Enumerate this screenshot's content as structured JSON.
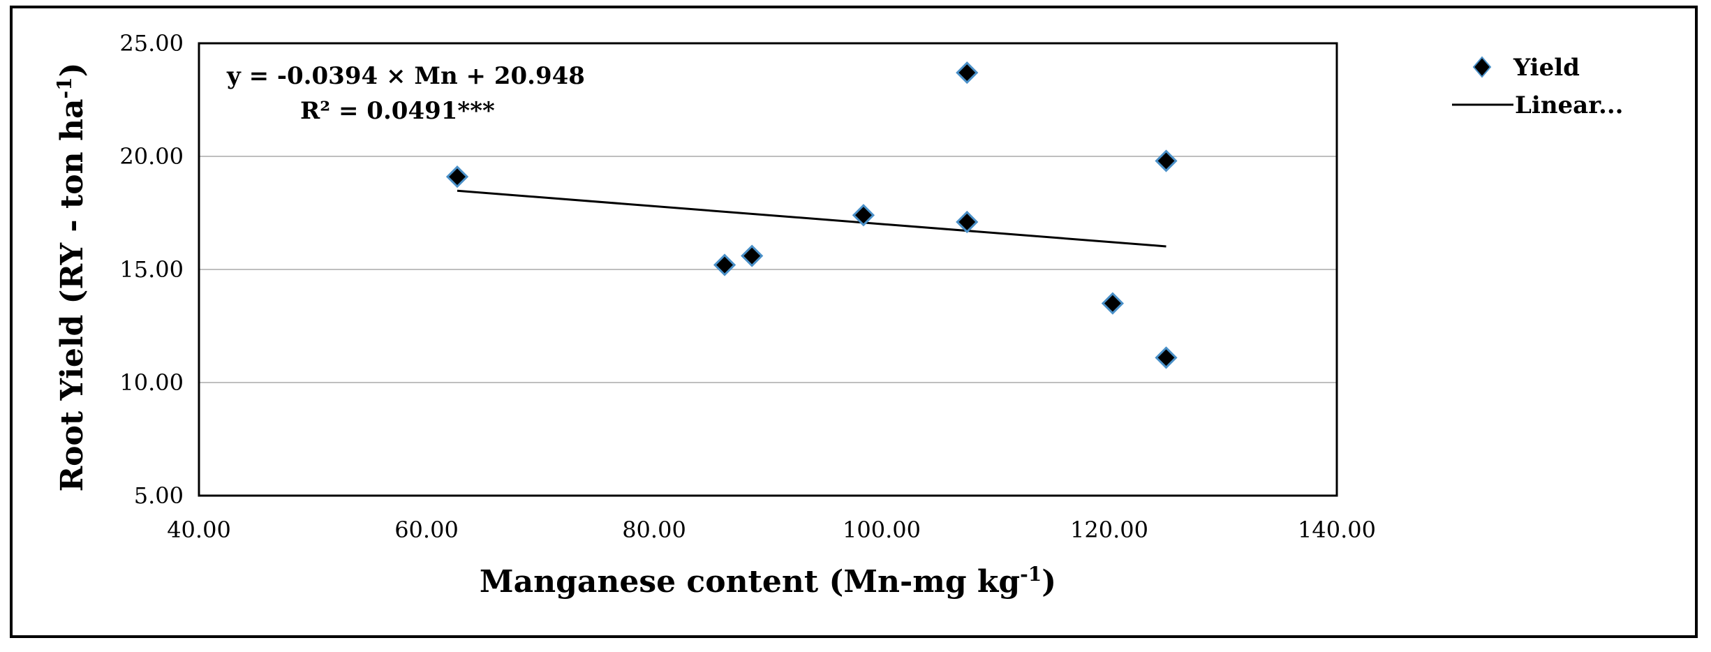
{
  "chart_data": {
    "type": "scatter",
    "title": "",
    "xlabel": "Manganese content (Mn-mg kg",
    "xlabel_sup": "-1",
    "xlabel_end": ")",
    "ylabel": "Root Yield (RY - ton ha",
    "ylabel_sup": "-1",
    "ylabel_end": ")",
    "xlim": [
      40,
      140
    ],
    "ylim": [
      5,
      25
    ],
    "x_ticks": [
      40,
      60,
      80,
      100,
      120,
      140
    ],
    "x_tick_labels": [
      "40.00",
      "60.00",
      "80.00",
      "100.00",
      "120.00",
      "140.00"
    ],
    "y_ticks": [
      5,
      10,
      15,
      20,
      25
    ],
    "y_tick_labels": [
      "5.00",
      "10.00",
      "15.00",
      "20.00",
      "25.00"
    ],
    "grid": "horizontal",
    "series": [
      {
        "name": "Yield",
        "marker": "diamond",
        "x": [
          62.7,
          86.2,
          88.6,
          98.4,
          107.5,
          107.5,
          120.3,
          125.0,
          125.0
        ],
        "y": [
          19.1,
          15.2,
          15.6,
          17.4,
          23.7,
          17.1,
          13.5,
          19.8,
          11.1
        ]
      },
      {
        "name": "Linear...",
        "type": "line",
        "x": [
          62.7,
          125.0
        ],
        "y": [
          18.48,
          16.02
        ]
      }
    ],
    "annotations": {
      "equation": "y = -0.0394 × Mn + 20.948",
      "r2": "R² = 0.0491***"
    },
    "legend": "top-right",
    "legend_entries": [
      "Yield",
      "Linear..."
    ]
  },
  "colors": {
    "marker_fill": "#000000",
    "marker_edge": "#4a90c8",
    "grid": "#bfbfbf",
    "line": "#000000"
  }
}
